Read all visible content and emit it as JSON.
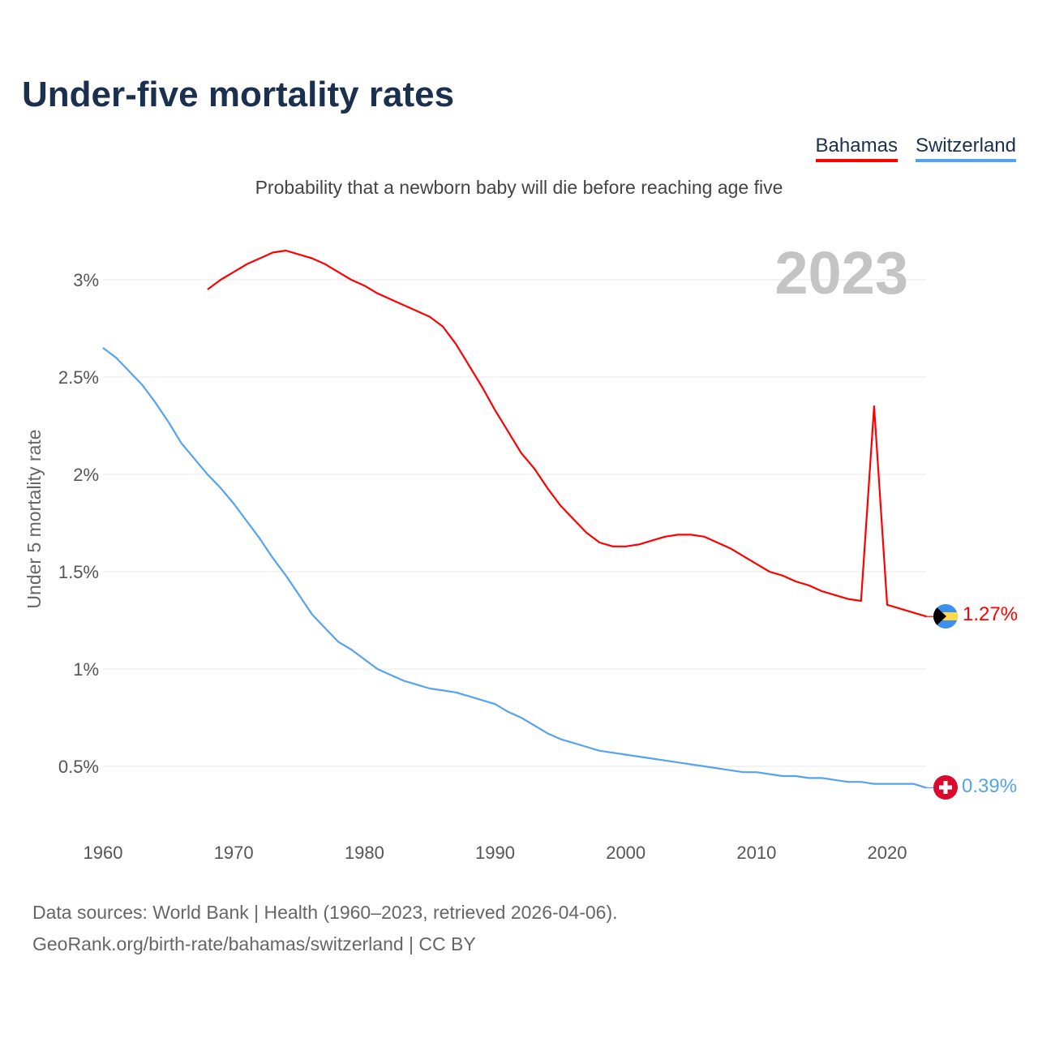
{
  "title": "Under-five mortality rates",
  "subtitle": "Probability that a newborn baby will die before reaching age five",
  "year_label": "2023",
  "sources": [
    "Data sources: World Bank | Health (1960–2023, retrieved 2026-04-06).",
    "GeoRank.org/birth-rate/bahamas/switzerland | CC BY"
  ],
  "chart_data": {
    "type": "line",
    "title": "Under-five mortality rates",
    "xlabel": "",
    "ylabel": "Under 5 mortality rate",
    "xlim": [
      1960,
      2023
    ],
    "ylim": [
      0.25,
      3.3
    ],
    "x_ticks": [
      1960,
      1970,
      1980,
      1990,
      2000,
      2010,
      2020
    ],
    "y_ticks": [
      0.5,
      1,
      1.5,
      2,
      2.5,
      3
    ],
    "y_tick_labels": [
      "0.5%",
      "1%",
      "1.5%",
      "2%",
      "2.5%",
      "3%"
    ],
    "grid": true,
    "legend_placement": "top-right",
    "series": [
      {
        "name": "Bahamas",
        "color": "#ff0000",
        "end_label": "1.27%",
        "flag": "bahamas-flag",
        "x_start": 1968,
        "values": [
          2.95,
          3.0,
          3.04,
          3.08,
          3.11,
          3.14,
          3.15,
          3.13,
          3.11,
          3.08,
          3.04,
          3.0,
          2.97,
          2.93,
          2.9,
          2.87,
          2.84,
          2.81,
          2.76,
          2.67,
          2.56,
          2.45,
          2.33,
          2.22,
          2.11,
          2.03,
          1.93,
          1.84,
          1.77,
          1.7,
          1.65,
          1.63,
          1.63,
          1.64,
          1.66,
          1.68,
          1.69,
          1.69,
          1.68,
          1.65,
          1.62,
          1.58,
          1.54,
          1.5,
          1.48,
          1.45,
          1.43,
          1.4,
          1.38,
          1.36,
          1.35,
          2.35,
          1.33,
          1.31,
          1.29,
          1.27
        ]
      },
      {
        "name": "Switzerland",
        "color": "#55a3ee",
        "end_label": "0.39%",
        "flag": "switzerland-flag",
        "x_start": 1960,
        "values": [
          2.65,
          2.6,
          2.53,
          2.46,
          2.37,
          2.27,
          2.16,
          2.08,
          2.0,
          1.93,
          1.85,
          1.76,
          1.67,
          1.57,
          1.48,
          1.38,
          1.28,
          1.21,
          1.14,
          1.1,
          1.05,
          1.0,
          0.97,
          0.94,
          0.92,
          0.9,
          0.89,
          0.88,
          0.86,
          0.84,
          0.82,
          0.78,
          0.75,
          0.71,
          0.67,
          0.64,
          0.62,
          0.6,
          0.58,
          0.57,
          0.56,
          0.55,
          0.54,
          0.53,
          0.52,
          0.51,
          0.5,
          0.49,
          0.48,
          0.47,
          0.47,
          0.46,
          0.45,
          0.45,
          0.44,
          0.44,
          0.43,
          0.42,
          0.42,
          0.41,
          0.41,
          0.41,
          0.41,
          0.39
        ]
      }
    ]
  }
}
